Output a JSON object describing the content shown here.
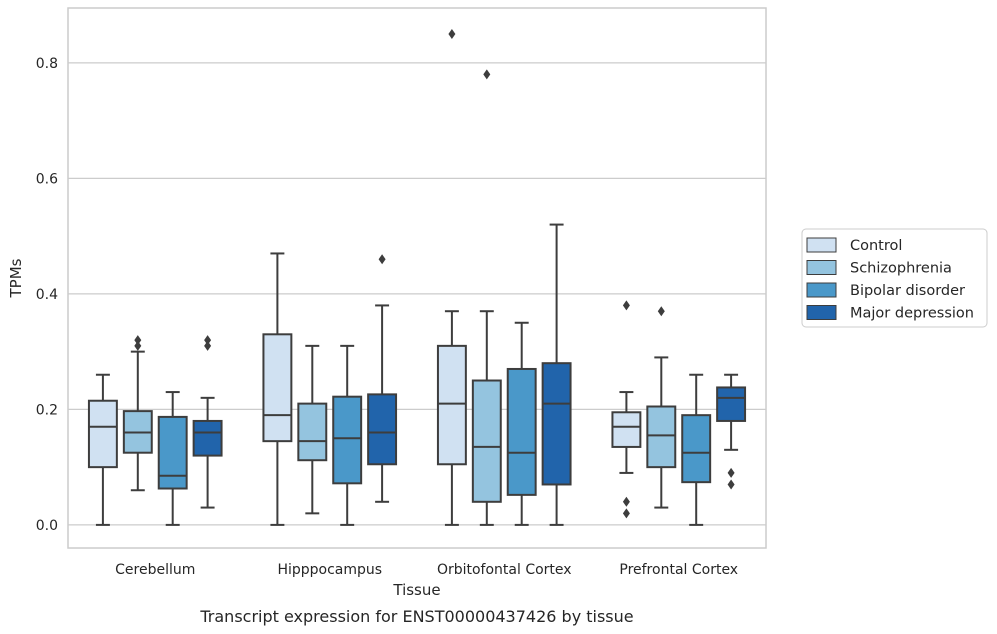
{
  "chart_data": {
    "type": "box",
    "title": "",
    "caption": "Transcript expression for ENST00000437426 by tissue",
    "xlabel": "Tissue",
    "ylabel": "TPMs",
    "ylim": [
      -0.04,
      0.895
    ],
    "yticks": [
      0.0,
      0.2,
      0.4,
      0.6,
      0.8
    ],
    "ytick_labels": [
      "0.0",
      "0.2",
      "0.4",
      "0.6",
      "0.8"
    ],
    "grid": "horizontal",
    "legend_position": "right",
    "categories": [
      "Cerebellum",
      "Hipppocampus",
      "Orbitofontal Cortex",
      "Prefrontal Cortex"
    ],
    "series": [
      {
        "name": "Control",
        "color": "#d0e1f2",
        "boxes": [
          {
            "whislo": 0.0,
            "q1": 0.1,
            "med": 0.17,
            "q3": 0.215,
            "whishi": 0.26,
            "fliers": []
          },
          {
            "whislo": 0.0,
            "q1": 0.145,
            "med": 0.19,
            "q3": 0.33,
            "whishi": 0.47,
            "fliers": []
          },
          {
            "whislo": 0.0,
            "q1": 0.105,
            "med": 0.21,
            "q3": 0.31,
            "whishi": 0.37,
            "fliers": [
              0.85
            ]
          },
          {
            "whislo": 0.09,
            "q1": 0.135,
            "med": 0.17,
            "q3": 0.195,
            "whishi": 0.23,
            "fliers": [
              0.38,
              0.04,
              0.02
            ]
          }
        ]
      },
      {
        "name": "Schizophrenia",
        "color": "#94c4df",
        "boxes": [
          {
            "whislo": 0.06,
            "q1": 0.125,
            "med": 0.16,
            "q3": 0.197,
            "whishi": 0.3,
            "fliers": [
              0.32,
              0.31
            ]
          },
          {
            "whislo": 0.02,
            "q1": 0.112,
            "med": 0.145,
            "q3": 0.21,
            "whishi": 0.31,
            "fliers": []
          },
          {
            "whislo": 0.0,
            "q1": 0.04,
            "med": 0.135,
            "q3": 0.25,
            "whishi": 0.37,
            "fliers": [
              0.78
            ]
          },
          {
            "whislo": 0.03,
            "q1": 0.1,
            "med": 0.155,
            "q3": 0.205,
            "whishi": 0.29,
            "fliers": [
              0.37
            ]
          }
        ]
      },
      {
        "name": "Bipolar disorder",
        "color": "#4a98c9",
        "boxes": [
          {
            "whislo": 0.0,
            "q1": 0.063,
            "med": 0.085,
            "q3": 0.187,
            "whishi": 0.23,
            "fliers": []
          },
          {
            "whislo": 0.0,
            "q1": 0.072,
            "med": 0.15,
            "q3": 0.222,
            "whishi": 0.31,
            "fliers": []
          },
          {
            "whislo": 0.0,
            "q1": 0.052,
            "med": 0.125,
            "q3": 0.27,
            "whishi": 0.35,
            "fliers": []
          },
          {
            "whislo": 0.0,
            "q1": 0.074,
            "med": 0.125,
            "q3": 0.19,
            "whishi": 0.26,
            "fliers": []
          }
        ]
      },
      {
        "name": "Major depression",
        "color": "#2164ab",
        "boxes": [
          {
            "whislo": 0.03,
            "q1": 0.12,
            "med": 0.16,
            "q3": 0.18,
            "whishi": 0.22,
            "fliers": [
              0.32,
              0.31
            ]
          },
          {
            "whislo": 0.04,
            "q1": 0.105,
            "med": 0.16,
            "q3": 0.226,
            "whishi": 0.38,
            "fliers": [
              0.46
            ]
          },
          {
            "whislo": 0.0,
            "q1": 0.07,
            "med": 0.21,
            "q3": 0.28,
            "whishi": 0.52,
            "fliers": []
          },
          {
            "whislo": 0.13,
            "q1": 0.18,
            "med": 0.22,
            "q3": 0.238,
            "whishi": 0.26,
            "fliers": [
              0.09,
              0.07
            ]
          }
        ]
      }
    ]
  }
}
